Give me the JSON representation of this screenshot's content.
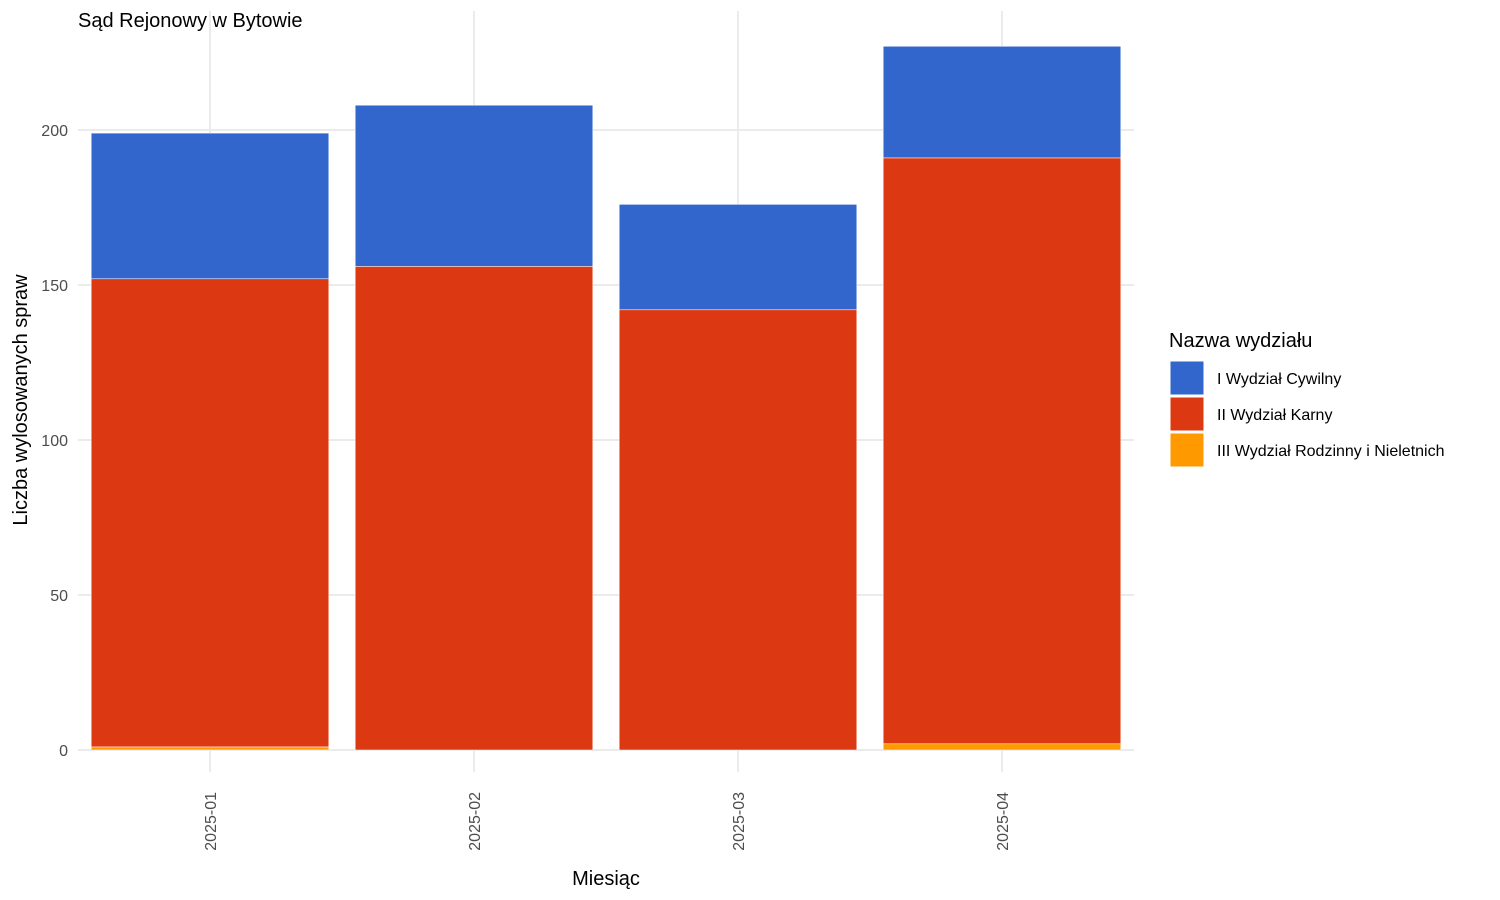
{
  "chart_data": {
    "type": "bar",
    "stacked": true,
    "title": "Sąd Rejonowy w Bytowie",
    "xlabel": "Miesiąc",
    "ylabel": "Liczba wylosowanych spraw",
    "categories": [
      "2025-01",
      "2025-02",
      "2025-03",
      "2025-04"
    ],
    "ylim": [
      0,
      230
    ],
    "yticks": [
      0,
      50,
      100,
      150,
      200
    ],
    "grid": true,
    "legend": {
      "title": "Nazwa wydziału",
      "position": "right"
    },
    "series": [
      {
        "name": "III Wydział Rodzinny i Nieletnich",
        "color": "#ff9900",
        "values": [
          1,
          0,
          0,
          2
        ]
      },
      {
        "name": "II Wydział Karny",
        "color": "#dc3912",
        "values": [
          151,
          156,
          142,
          189
        ]
      },
      {
        "name": "I Wydział Cywilny",
        "color": "#3366cc",
        "values": [
          47,
          52,
          34,
          36
        ]
      }
    ],
    "legend_order": [
      "I Wydział Cywilny",
      "II Wydział Karny",
      "III Wydział Rodzinny i Nieletnich"
    ]
  }
}
